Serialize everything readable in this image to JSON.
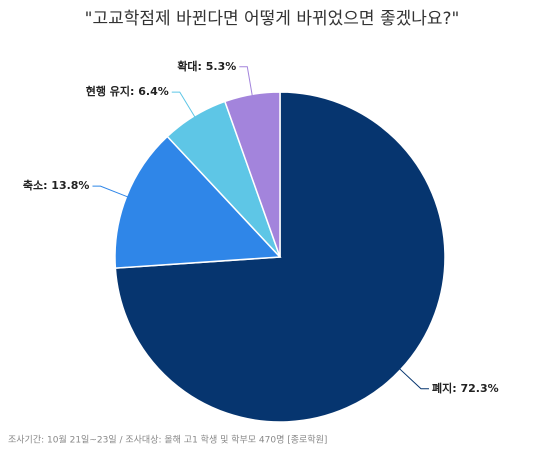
{
  "chart_data": {
    "type": "pie",
    "title": "\"고교학점제 바뀐다면 어떻게 바뀌었으면 좋겠나요?\"",
    "values": [
      72.3,
      13.8,
      6.4,
      5.3
    ],
    "value_labels": [
      "폐지: 72.3%",
      "축소: 13.8%",
      "현행 유지: 6.4%",
      "확대: 5.3%"
    ],
    "colors": [
      "#06356f",
      "#2f86e8",
      "#5ec6e6",
      "#a384dc"
    ],
    "note": "조사기간: 10월 21일~23일 / 조사대상: 올해 고1 학생 및 학부모 470명 [종로학원]"
  }
}
